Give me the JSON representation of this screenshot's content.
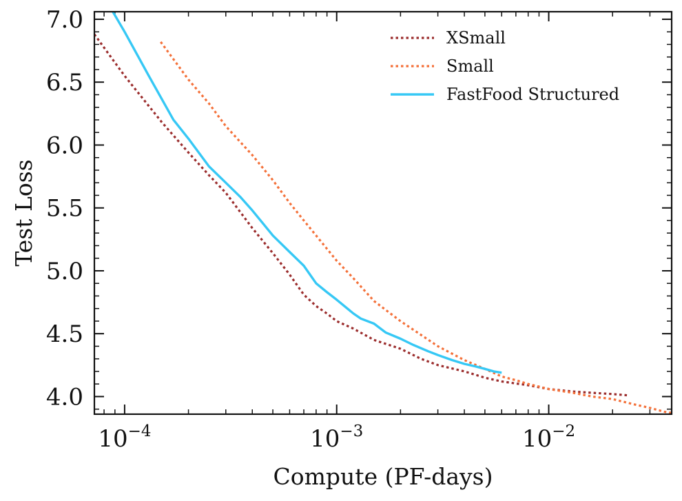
{
  "chart_data": {
    "type": "line",
    "title": "",
    "xlabel": "Compute (PF-days)",
    "ylabel": "Test Loss",
    "xscale": "log",
    "xlim": [
      7.2e-05,
      0.038
    ],
    "ylim": [
      3.86,
      7.06
    ],
    "grid": false,
    "legend_position": "top-right",
    "x_ticks": [
      {
        "value": 0.0001,
        "base": "10",
        "exp": "−4"
      },
      {
        "value": 0.001,
        "base": "10",
        "exp": "−3"
      },
      {
        "value": 0.01,
        "base": "10",
        "exp": "−2"
      }
    ],
    "y_ticks": [
      {
        "value": 4.0,
        "label": "4.0"
      },
      {
        "value": 4.5,
        "label": "4.5"
      },
      {
        "value": 5.0,
        "label": "5.0"
      },
      {
        "value": 5.5,
        "label": "5.5"
      },
      {
        "value": 6.0,
        "label": "6.0"
      },
      {
        "value": 6.5,
        "label": "6.5"
      },
      {
        "value": 7.0,
        "label": "7.0"
      }
    ],
    "series": [
      {
        "name": "XSmall",
        "color": "#9b2d2d",
        "dash": "dotted",
        "points": [
          [
            7.2e-05,
            6.88
          ],
          [
            0.0001,
            6.55
          ],
          [
            0.00015,
            6.18
          ],
          [
            0.0002,
            5.94
          ],
          [
            0.00025,
            5.76
          ],
          [
            0.0003,
            5.62
          ],
          [
            0.0004,
            5.34
          ],
          [
            0.0005,
            5.14
          ],
          [
            0.0006,
            4.97
          ],
          [
            0.0007,
            4.81
          ],
          [
            0.0008,
            4.72
          ],
          [
            0.0009,
            4.66
          ],
          [
            0.001,
            4.6
          ],
          [
            0.0012,
            4.54
          ],
          [
            0.0015,
            4.45
          ],
          [
            0.002,
            4.38
          ],
          [
            0.0025,
            4.3
          ],
          [
            0.003,
            4.25
          ],
          [
            0.004,
            4.2
          ],
          [
            0.005,
            4.15
          ],
          [
            0.006,
            4.12
          ],
          [
            0.008,
            4.09
          ],
          [
            0.01,
            4.06
          ],
          [
            0.013,
            4.04
          ],
          [
            0.016,
            4.03
          ],
          [
            0.02,
            4.02
          ],
          [
            0.0235,
            4.01
          ]
        ]
      },
      {
        "name": "Small",
        "color": "#f4713a",
        "dash": "dotted",
        "points": [
          [
            0.000148,
            6.82
          ],
          [
            0.0002,
            6.52
          ],
          [
            0.00025,
            6.33
          ],
          [
            0.0003,
            6.15
          ],
          [
            0.0004,
            5.92
          ],
          [
            0.0005,
            5.72
          ],
          [
            0.0006,
            5.54
          ],
          [
            0.0007,
            5.4
          ],
          [
            0.0008,
            5.28
          ],
          [
            0.001,
            5.08
          ],
          [
            0.0012,
            4.94
          ],
          [
            0.0015,
            4.76
          ],
          [
            0.002,
            4.6
          ],
          [
            0.0025,
            4.49
          ],
          [
            0.003,
            4.4
          ],
          [
            0.004,
            4.29
          ],
          [
            0.005,
            4.22
          ],
          [
            0.006,
            4.16
          ],
          [
            0.007,
            4.13
          ],
          [
            0.008,
            4.1
          ],
          [
            0.01,
            4.06
          ],
          [
            0.013,
            4.03
          ],
          [
            0.016,
            4.0
          ],
          [
            0.02,
            3.98
          ],
          [
            0.025,
            3.94
          ],
          [
            0.03,
            3.91
          ],
          [
            0.035,
            3.88
          ],
          [
            0.038,
            3.87
          ]
        ]
      },
      {
        "name": "FastFood Structured",
        "color": "#36c8f5",
        "dash": "solid",
        "points": [
          [
            8.8e-05,
            7.06
          ],
          [
            0.0001,
            6.9
          ],
          [
            0.00013,
            6.55
          ],
          [
            0.00017,
            6.2
          ],
          [
            0.0002,
            6.05
          ],
          [
            0.00025,
            5.83
          ],
          [
            0.0003,
            5.7
          ],
          [
            0.00035,
            5.59
          ],
          [
            0.0004,
            5.48
          ],
          [
            0.0005,
            5.28
          ],
          [
            0.0006,
            5.15
          ],
          [
            0.0007,
            5.04
          ],
          [
            0.0008,
            4.9
          ],
          [
            0.0009,
            4.83
          ],
          [
            0.001,
            4.77
          ],
          [
            0.0012,
            4.66
          ],
          [
            0.0013,
            4.62
          ],
          [
            0.0015,
            4.58
          ],
          [
            0.0017,
            4.51
          ],
          [
            0.002,
            4.46
          ],
          [
            0.0023,
            4.41
          ],
          [
            0.0027,
            4.36
          ],
          [
            0.003,
            4.33
          ],
          [
            0.0035,
            4.29
          ],
          [
            0.004,
            4.26
          ],
          [
            0.0045,
            4.24
          ],
          [
            0.005,
            4.22
          ],
          [
            0.0055,
            4.2
          ],
          [
            0.006,
            4.19
          ]
        ]
      }
    ]
  }
}
